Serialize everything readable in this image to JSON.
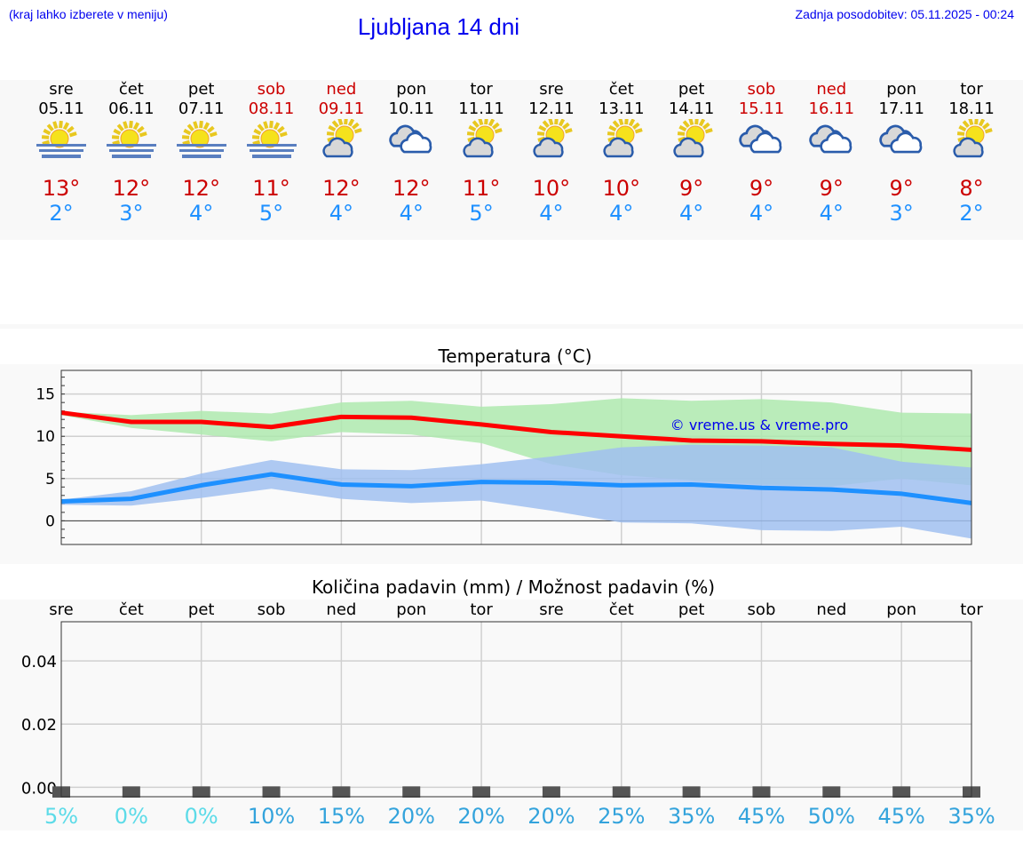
{
  "header": {
    "hint": "(kraj lahko izberete v meniju)",
    "title": "Ljubljana 14 dni",
    "updated": "Zadnja posodobitev: 05.11.2025 - 00:24"
  },
  "days": [
    {
      "name": "sre",
      "date": "05.11",
      "weekend": false,
      "icon": "fog-sun-icon",
      "max": "13°",
      "min": "2°"
    },
    {
      "name": "čet",
      "date": "06.11",
      "weekend": false,
      "icon": "fog-sun-icon",
      "max": "12°",
      "min": "3°"
    },
    {
      "name": "pet",
      "date": "07.11",
      "weekend": false,
      "icon": "fog-sun-icon",
      "max": "12°",
      "min": "4°"
    },
    {
      "name": "sob",
      "date": "08.11",
      "weekend": true,
      "icon": "fog-sun-icon",
      "max": "11°",
      "min": "5°"
    },
    {
      "name": "ned",
      "date": "09.11",
      "weekend": true,
      "icon": "partly-cloudy-icon",
      "max": "12°",
      "min": "4°"
    },
    {
      "name": "pon",
      "date": "10.11",
      "weekend": false,
      "icon": "cloudy-icon",
      "max": "12°",
      "min": "4°"
    },
    {
      "name": "tor",
      "date": "11.11",
      "weekend": false,
      "icon": "partly-cloudy-icon",
      "max": "11°",
      "min": "5°"
    },
    {
      "name": "sre",
      "date": "12.11",
      "weekend": false,
      "icon": "partly-cloudy-icon",
      "max": "10°",
      "min": "4°"
    },
    {
      "name": "čet",
      "date": "13.11",
      "weekend": false,
      "icon": "partly-cloudy-icon",
      "max": "10°",
      "min": "4°"
    },
    {
      "name": "pet",
      "date": "14.11",
      "weekend": false,
      "icon": "partly-cloudy-icon",
      "max": "9°",
      "min": "4°"
    },
    {
      "name": "sob",
      "date": "15.11",
      "weekend": true,
      "icon": "cloudy-icon",
      "max": "9°",
      "min": "4°"
    },
    {
      "name": "ned",
      "date": "16.11",
      "weekend": true,
      "icon": "cloudy-icon",
      "max": "9°",
      "min": "4°"
    },
    {
      "name": "pon",
      "date": "17.11",
      "weekend": false,
      "icon": "cloudy-icon",
      "max": "9°",
      "min": "3°"
    },
    {
      "name": "tor",
      "date": "18.11",
      "weekend": false,
      "icon": "partly-cloudy-icon",
      "max": "8°",
      "min": "2°"
    }
  ],
  "chart_data": [
    {
      "type": "line",
      "title": "Temperatura (°C)",
      "watermark": "© vreme.us & vreme.pro",
      "x": [
        "05.11",
        "06.11",
        "07.11",
        "08.11",
        "09.11",
        "10.11",
        "11.11",
        "12.11",
        "13.11",
        "14.11",
        "15.11",
        "16.11",
        "17.11",
        "18.11"
      ],
      "ylim": [
        -2.8,
        17.8
      ],
      "yticks": [
        0,
        5,
        10,
        15
      ],
      "grid": true,
      "series": [
        {
          "kind": "max",
          "color": "#ff0000",
          "values": [
            12.8,
            11.7,
            11.7,
            11.1,
            12.3,
            12.2,
            11.4,
            10.5,
            10.0,
            9.5,
            9.4,
            9.1,
            8.9,
            8.4
          ],
          "band_color": "#aee9ae",
          "band_upper": [
            12.9,
            12.5,
            13.0,
            12.7,
            14.0,
            14.2,
            13.5,
            13.8,
            14.5,
            14.2,
            14.4,
            14.0,
            12.8,
            12.7
          ],
          "band_lower": [
            12.5,
            11.0,
            10.2,
            9.4,
            10.5,
            10.2,
            9.2,
            6.7,
            5.4,
            4.8,
            4.3,
            4.1,
            5.0,
            4.2
          ]
        },
        {
          "kind": "min",
          "color": "#1e90ff",
          "values": [
            2.3,
            2.6,
            4.2,
            5.5,
            4.3,
            4.1,
            4.6,
            4.5,
            4.2,
            4.3,
            3.9,
            3.7,
            3.2,
            2.1
          ],
          "band_color": "#a0bff0",
          "band_upper": [
            2.5,
            3.5,
            5.6,
            7.2,
            6.1,
            6.0,
            6.7,
            7.6,
            8.7,
            9.0,
            8.9,
            8.7,
            7.0,
            6.3
          ],
          "band_lower": [
            1.9,
            1.8,
            2.7,
            3.8,
            2.6,
            2.1,
            2.4,
            1.2,
            -0.2,
            -0.3,
            -1.1,
            -1.2,
            -0.7,
            -2.1
          ]
        }
      ]
    },
    {
      "type": "bar",
      "title": "Količina padavin (mm) / Možnost padavin (%)",
      "categories": [
        "sre",
        "čet",
        "pet",
        "sob",
        "ned",
        "pon",
        "tor",
        "sre",
        "čet",
        "pet",
        "sob",
        "ned",
        "pon",
        "tor"
      ],
      "values": [
        0,
        0,
        0,
        0,
        0,
        0,
        0,
        0,
        0,
        0,
        0,
        0,
        0,
        0
      ],
      "ylim": [
        -0.003,
        0.0524
      ],
      "yticks": [
        "0.00",
        "0.02",
        "0.04"
      ],
      "ytick_values": [
        0,
        0.02,
        0.04
      ],
      "grid": true,
      "probability": [
        "5%",
        "0%",
        "0%",
        "10%",
        "15%",
        "20%",
        "20%",
        "20%",
        "25%",
        "35%",
        "45%",
        "50%",
        "45%",
        "35%"
      ],
      "probability_low_color": "#5cdbe8",
      "probability_high_color": "#33a3dc"
    }
  ]
}
